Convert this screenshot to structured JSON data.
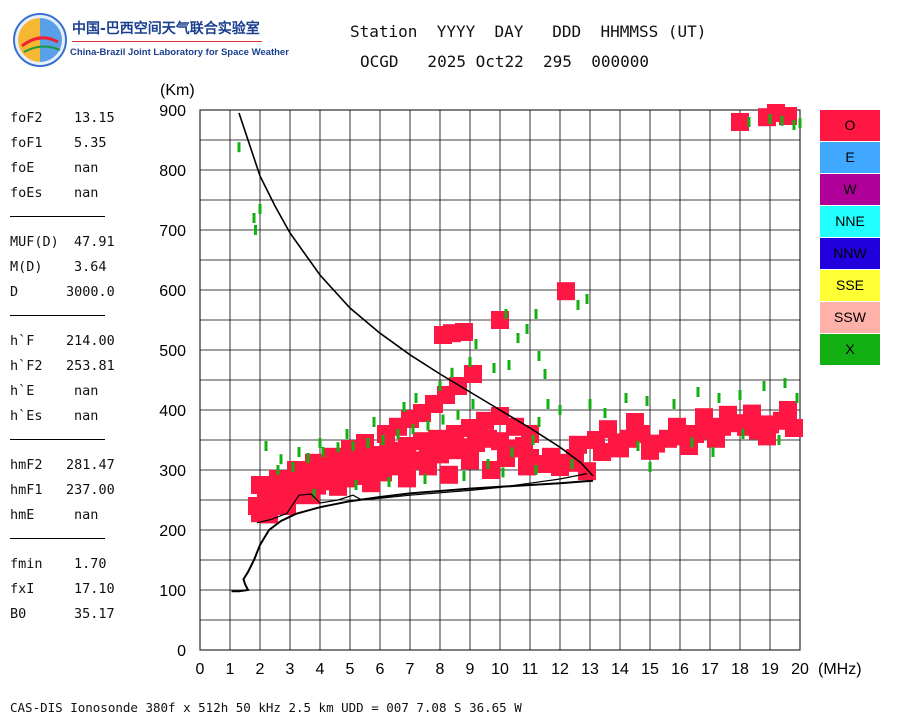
{
  "logo": {
    "cn_text": "中国-巴西空间天气联合实验室",
    "en_text": "China-Brazil Joint Laboratory for Space Weather"
  },
  "header": {
    "line1": "Station  YYYY  DAY   DDD  HHMMSS (UT)",
    "line2": "OCGD   2025 Oct22  295  000000"
  },
  "params": [
    {
      "group": [
        {
          "label": "foF2",
          "value": "13.15"
        },
        {
          "label": "foF1",
          "value": "5.35"
        },
        {
          "label": "foE",
          "value": "nan"
        },
        {
          "label": "foEs",
          "value": "nan"
        }
      ]
    },
    {
      "group": [
        {
          "label": "MUF(D)",
          "value": "47.91"
        },
        {
          "label": "M(D)",
          "value": "3.64"
        },
        {
          "label": "D",
          "value": "3000.0"
        }
      ]
    },
    {
      "group": [
        {
          "label": "h`F",
          "value": "214.00"
        },
        {
          "label": "h`F2",
          "value": "253.81"
        },
        {
          "label": "h`E",
          "value": "nan"
        },
        {
          "label": "h`Es",
          "value": "nan"
        }
      ]
    },
    {
      "group": [
        {
          "label": "hmF2",
          "value": "281.47"
        },
        {
          "label": "hmF1",
          "value": "237.00"
        },
        {
          "label": "hmE",
          "value": "nan"
        }
      ]
    },
    {
      "group": [
        {
          "label": "fmin",
          "value": "1.70"
        },
        {
          "label": "fxI",
          "value": "17.10"
        },
        {
          "label": "B0",
          "value": "35.17"
        }
      ]
    }
  ],
  "footer": "CAS-DIS Ionosonde 380f x 512h 50 kHz 2.5 km UDD = 007 7.08 S 36.65 W",
  "chart_data": {
    "type": "scatter",
    "title": "",
    "xlabel": "(MHz)",
    "ylabel": "(Km)",
    "xlim": [
      0,
      20
    ],
    "ylim": [
      0,
      900
    ],
    "xticks": [
      0,
      1,
      2,
      3,
      4,
      5,
      6,
      7,
      8,
      9,
      10,
      11,
      12,
      13,
      14,
      15,
      16,
      17,
      18,
      19,
      20
    ],
    "yticks": [
      0,
      100,
      200,
      300,
      400,
      500,
      600,
      700,
      800,
      900
    ],
    "grid": true,
    "legend_position": "right",
    "legend": [
      {
        "label": "O",
        "color": "#ff1744"
      },
      {
        "label": "E",
        "color": "#40a8ff"
      },
      {
        "label": "W",
        "color": "#b0009a"
      },
      {
        "label": "NNE",
        "color": "#22ffff"
      },
      {
        "label": "NNW",
        "color": "#2200dd"
      },
      {
        "label": "SSE",
        "color": "#ffff33"
      },
      {
        "label": "SSW",
        "color": "#ffb0a8"
      },
      {
        "label": "X",
        "color": "#13b013"
      }
    ],
    "trace_color": "#000000",
    "virtual_height_trace": [
      [
        1.05,
        98
      ],
      [
        1.3,
        98
      ],
      [
        1.6,
        100
      ],
      [
        1.5,
        110
      ],
      [
        1.45,
        118
      ],
      [
        1.6,
        130
      ],
      [
        1.8,
        150
      ],
      [
        2.0,
        175
      ],
      [
        2.3,
        200
      ],
      [
        2.7,
        215
      ],
      [
        3.2,
        227
      ],
      [
        4,
        238
      ],
      [
        5,
        248
      ],
      [
        6,
        255
      ],
      [
        7,
        261
      ],
      [
        8,
        265
      ],
      [
        9,
        269
      ],
      [
        10,
        272
      ],
      [
        11,
        275
      ],
      [
        12,
        278
      ],
      [
        12.8,
        281
      ],
      [
        13.1,
        282
      ]
    ],
    "inner_trace": [
      [
        1.9,
        212
      ],
      [
        2.4,
        218
      ],
      [
        2.9,
        228
      ],
      [
        3.3,
        258
      ],
      [
        3.7,
        260
      ],
      [
        4.0,
        245
      ],
      [
        4.6,
        250
      ],
      [
        5.1,
        258
      ],
      [
        5.4,
        250
      ],
      [
        6.0,
        253
      ],
      [
        7.0,
        258
      ],
      [
        8.0,
        262
      ],
      [
        9.0,
        266
      ],
      [
        10.0,
        271
      ],
      [
        11.0,
        278
      ],
      [
        12.0,
        285
      ],
      [
        12.9,
        294
      ]
    ],
    "maxdensity_curve": [
      [
        1.3,
        895
      ],
      [
        1.6,
        850
      ],
      [
        2.0,
        790
      ],
      [
        2.5,
        740
      ],
      [
        3.0,
        695
      ],
      [
        3.5,
        660
      ],
      [
        4.0,
        625
      ],
      [
        5.0,
        570
      ],
      [
        6.0,
        528
      ],
      [
        7.0,
        492
      ],
      [
        8.0,
        460
      ],
      [
        9.0,
        430
      ],
      [
        10.0,
        400
      ],
      [
        11.0,
        370
      ],
      [
        12.0,
        338
      ],
      [
        12.7,
        312
      ],
      [
        13.1,
        290
      ]
    ],
    "points_o": [
      [
        2.1,
        232
      ],
      [
        2.4,
        244
      ],
      [
        2.8,
        262
      ],
      [
        3.1,
        258
      ],
      [
        3.5,
        268
      ],
      [
        3.9,
        274
      ],
      [
        4.3,
        281
      ],
      [
        4.7,
        288
      ],
      [
        5.2,
        290
      ],
      [
        5.6,
        295
      ],
      [
        6.0,
        300
      ],
      [
        6.4,
        306
      ],
      [
        6.8,
        310
      ],
      [
        7.2,
        316
      ],
      [
        7.6,
        320
      ],
      [
        8.0,
        326
      ],
      [
        8.4,
        333
      ],
      [
        8.8,
        338
      ],
      [
        9.2,
        345
      ],
      [
        9.6,
        352
      ],
      [
        10.0,
        348
      ],
      [
        10.5,
        336
      ],
      [
        11.0,
        320
      ],
      [
        11.5,
        310
      ],
      [
        12.0,
        305
      ],
      [
        2.5,
        275
      ],
      [
        3.0,
        285
      ],
      [
        3.6,
        292
      ],
      [
        4.2,
        300
      ],
      [
        4.8,
        310
      ],
      [
        5.3,
        318
      ],
      [
        5.8,
        325
      ],
      [
        6.3,
        332
      ],
      [
        6.9,
        340
      ],
      [
        7.4,
        348
      ],
      [
        7.9,
        352
      ],
      [
        8.5,
        360
      ],
      [
        9.0,
        370
      ],
      [
        9.5,
        382
      ],
      [
        10.0,
        390
      ],
      [
        10.5,
        372
      ],
      [
        11.0,
        360
      ],
      [
        2.2,
        255
      ],
      [
        2.7,
        265
      ],
      [
        3.3,
        276
      ],
      [
        4.5,
        292
      ],
      [
        6.6,
        320
      ],
      [
        7.9,
        338
      ],
      [
        9.3,
        356
      ],
      [
        10.8,
        340
      ],
      [
        12.5,
        320
      ],
      [
        13.4,
        330
      ],
      [
        13.9,
        346
      ],
      [
        14.3,
        352
      ],
      [
        14.7,
        360
      ],
      [
        15.2,
        344
      ],
      [
        15.6,
        352
      ],
      [
        16.1,
        356
      ],
      [
        16.5,
        360
      ],
      [
        17.0,
        366
      ],
      [
        17.4,
        372
      ],
      [
        17.8,
        378
      ],
      [
        18.2,
        372
      ],
      [
        18.6,
        366
      ],
      [
        19.0,
        376
      ],
      [
        19.4,
        382
      ],
      [
        19.8,
        370
      ],
      [
        13.6,
        368
      ],
      [
        14.5,
        380
      ],
      [
        15.9,
        372
      ],
      [
        16.8,
        388
      ],
      [
        17.6,
        392
      ],
      [
        18.4,
        394
      ],
      [
        19.6,
        400
      ],
      [
        13.2,
        350
      ],
      [
        14.0,
        336
      ],
      [
        15.0,
        332
      ],
      [
        16.3,
        340
      ],
      [
        17.2,
        352
      ],
      [
        18.9,
        356
      ],
      [
        12.6,
        342
      ],
      [
        8.1,
        525
      ],
      [
        8.4,
        528
      ],
      [
        8.8,
        530
      ],
      [
        10.0,
        550
      ],
      [
        12.2,
        598
      ],
      [
        18.0,
        880
      ],
      [
        18.9,
        888
      ],
      [
        19.2,
        895
      ],
      [
        19.6,
        890
      ],
      [
        8.6,
        440
      ],
      [
        9.1,
        460
      ],
      [
        7.8,
        410
      ],
      [
        8.2,
        425
      ],
      [
        7.4,
        395
      ],
      [
        7.0,
        385
      ],
      [
        6.6,
        372
      ],
      [
        6.2,
        360
      ],
      [
        5.5,
        345
      ],
      [
        5.0,
        335
      ],
      [
        4.4,
        322
      ],
      [
        3.8,
        312
      ],
      [
        3.2,
        300
      ],
      [
        2.6,
        285
      ],
      [
        2.0,
        275
      ],
      [
        1.9,
        240
      ],
      [
        2.0,
        228
      ],
      [
        2.3,
        226
      ],
      [
        2.9,
        240
      ],
      [
        3.7,
        258
      ],
      [
        4.6,
        272
      ],
      [
        5.7,
        278
      ],
      [
        6.9,
        286
      ],
      [
        8.3,
        292
      ],
      [
        9.7,
        300
      ],
      [
        10.9,
        306
      ],
      [
        12.3,
        312
      ],
      [
        12.9,
        298
      ],
      [
        11.7,
        322
      ],
      [
        10.2,
        320
      ],
      [
        9.0,
        316
      ],
      [
        7.6,
        306
      ],
      [
        6.1,
        296
      ],
      [
        4.9,
        286
      ],
      [
        3.5,
        270
      ],
      [
        2.4,
        258
      ]
    ],
    "points_x": [
      [
        1.3,
        838
      ],
      [
        1.8,
        720
      ],
      [
        1.85,
        700
      ],
      [
        2.0,
        735
      ],
      [
        2.2,
        340
      ],
      [
        2.6,
        300
      ],
      [
        3.1,
        305
      ],
      [
        3.6,
        320
      ],
      [
        4.1,
        330
      ],
      [
        4.6,
        338
      ],
      [
        5.1,
        340
      ],
      [
        5.6,
        345
      ],
      [
        6.1,
        350
      ],
      [
        6.6,
        360
      ],
      [
        7.1,
        368
      ],
      [
        7.6,
        374
      ],
      [
        8.1,
        384
      ],
      [
        8.6,
        392
      ],
      [
        9.1,
        410
      ],
      [
        9.0,
        480
      ],
      [
        9.2,
        510
      ],
      [
        9.8,
        470
      ],
      [
        10.3,
        475
      ],
      [
        10.6,
        520
      ],
      [
        10.2,
        560
      ],
      [
        10.9,
        535
      ],
      [
        11.3,
        490
      ],
      [
        11.5,
        460
      ],
      [
        11.6,
        410
      ],
      [
        11.3,
        380
      ],
      [
        11.1,
        350
      ],
      [
        10.4,
        330
      ],
      [
        9.6,
        310
      ],
      [
        12.6,
        575
      ],
      [
        12.9,
        585
      ],
      [
        11.2,
        560
      ],
      [
        12.0,
        400
      ],
      [
        13.0,
        410
      ],
      [
        13.5,
        395
      ],
      [
        14.2,
        420
      ],
      [
        14.9,
        415
      ],
      [
        15.8,
        410
      ],
      [
        16.6,
        430
      ],
      [
        17.3,
        420
      ],
      [
        18.0,
        425
      ],
      [
        18.8,
        440
      ],
      [
        19.5,
        445
      ],
      [
        19.9,
        420
      ],
      [
        18.1,
        360
      ],
      [
        19.3,
        350
      ],
      [
        15.0,
        305
      ],
      [
        14.6,
        340
      ],
      [
        16.4,
        346
      ],
      [
        17.1,
        330
      ],
      [
        18.3,
        880
      ],
      [
        19.0,
        885
      ],
      [
        19.4,
        882
      ],
      [
        19.8,
        875
      ],
      [
        20.0,
        878
      ],
      [
        3.8,
        260
      ],
      [
        5.2,
        275
      ],
      [
        6.3,
        280
      ],
      [
        7.5,
        285
      ],
      [
        8.8,
        290
      ],
      [
        10.1,
        296
      ],
      [
        11.2,
        300
      ],
      [
        12.4,
        310
      ],
      [
        8.4,
        462
      ],
      [
        8.0,
        440
      ],
      [
        7.2,
        420
      ],
      [
        6.8,
        405
      ],
      [
        5.8,
        380
      ],
      [
        4.9,
        360
      ],
      [
        4.0,
        345
      ],
      [
        3.3,
        330
      ],
      [
        2.7,
        318
      ]
    ]
  }
}
